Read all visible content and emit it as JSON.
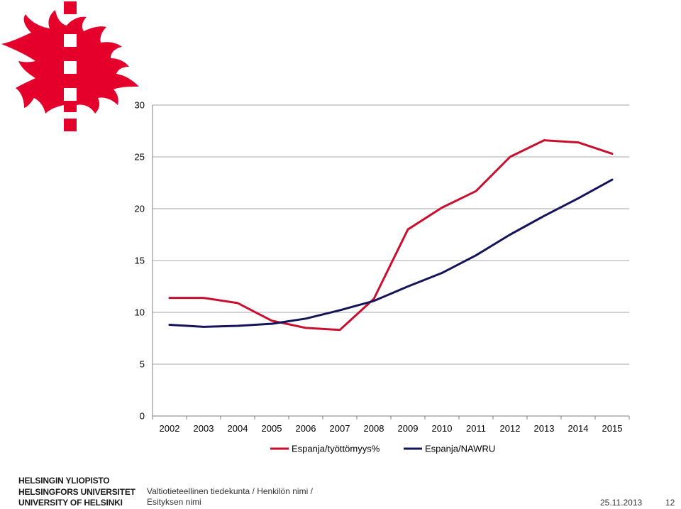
{
  "logo": {
    "icon": "university-flame-cross-logo",
    "color": "#e4002b"
  },
  "chart_data": {
    "type": "line",
    "title": "",
    "xlabel": "",
    "ylabel": "",
    "categories": [
      "2002",
      "2003",
      "2004",
      "2005",
      "2006",
      "2007",
      "2008",
      "2009",
      "2010",
      "2011",
      "2012",
      "2013",
      "2014",
      "2015"
    ],
    "ylim": [
      0,
      30
    ],
    "yticks": [
      0,
      5,
      10,
      15,
      20,
      25,
      30
    ],
    "grid": true,
    "legend_position": "bottom",
    "series": [
      {
        "name": "Espanja/työttömyys%",
        "color": "#c8102e",
        "values": [
          11.4,
          11.4,
          10.9,
          9.2,
          8.5,
          8.3,
          11.3,
          18.0,
          20.1,
          21.7,
          25.0,
          26.6,
          26.4,
          25.3
        ]
      },
      {
        "name": "Espanja/NAWRU",
        "color": "#14145a",
        "values": [
          8.8,
          8.6,
          8.7,
          8.9,
          9.4,
          10.2,
          11.1,
          12.5,
          13.8,
          15.5,
          17.5,
          19.3,
          21.0,
          22.8
        ]
      }
    ]
  },
  "footer": {
    "brand_lines": [
      "HELSINGIN YLIOPISTO",
      "HELSINGFORS UNIVERSITET",
      "UNIVERSITY OF HELSINKI"
    ],
    "department_line1": "Valtiotieteellinen tiedekunta / Henkilön nimi /",
    "department_line2": "Esityksen nimi",
    "date": "25.11.2013",
    "page": "12"
  }
}
